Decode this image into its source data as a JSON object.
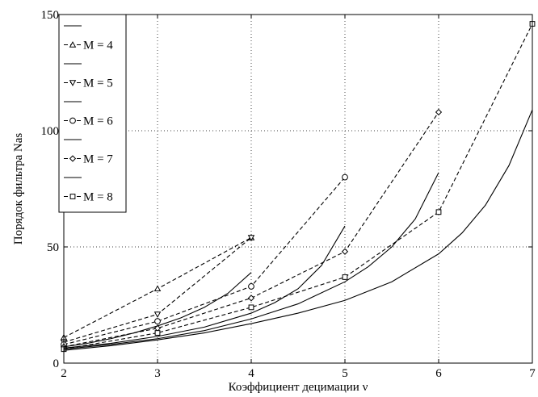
{
  "chart_data": {
    "type": "line",
    "title": "",
    "xlabel": "Коэффициент децимации ν",
    "ylabel": "Порядок фильтра  Nas",
    "xlim": [
      2,
      7
    ],
    "ylim": [
      0,
      150
    ],
    "xticks": [
      2,
      3,
      4,
      5,
      6,
      7
    ],
    "yticks": [
      0,
      50,
      100,
      150
    ],
    "grid": true,
    "legend_position": "top-left",
    "series": [
      {
        "name": "M = 4",
        "style": "dashed",
        "marker": "triangle-up",
        "x": [
          2,
          3,
          4
        ],
        "y": [
          11,
          32,
          54
        ]
      },
      {
        "name": "M = 5",
        "style": "dashed",
        "marker": "triangle-down",
        "x": [
          2,
          3,
          4
        ],
        "y": [
          9,
          21,
          54
        ]
      },
      {
        "name": "M = 6",
        "style": "dashed",
        "marker": "circle",
        "x": [
          2,
          3,
          4,
          5
        ],
        "y": [
          8,
          18,
          33,
          80
        ]
      },
      {
        "name": "M = 7",
        "style": "dashed",
        "marker": "diamond",
        "x": [
          2,
          3,
          4,
          5,
          6
        ],
        "y": [
          7,
          15,
          28,
          48,
          108
        ]
      },
      {
        "name": "M = 8",
        "style": "dashed",
        "marker": "square",
        "x": [
          2,
          3,
          4,
          5,
          6,
          7
        ],
        "y": [
          6,
          13,
          24,
          37,
          65,
          146
        ]
      },
      {
        "name": "",
        "style": "solid",
        "marker": "none",
        "x": [
          2,
          2.25,
          2.5,
          2.75,
          3,
          3.25,
          3.5,
          3.75,
          4
        ],
        "y": [
          7,
          8.5,
          10.5,
          13,
          16,
          19.5,
          24,
          30,
          39
        ]
      },
      {
        "name": "",
        "style": "solid",
        "marker": "none",
        "x": [
          2,
          2.5,
          3,
          3.5,
          4,
          4.25,
          4.5,
          4.75,
          5
        ],
        "y": [
          6.5,
          8.5,
          11.5,
          15.5,
          21.5,
          26,
          32,
          42,
          59
        ]
      },
      {
        "name": "",
        "style": "solid",
        "marker": "none",
        "x": [
          2,
          2.5,
          3,
          3.5,
          4,
          4.5,
          5,
          5.25,
          5.5,
          5.75,
          6
        ],
        "y": [
          6,
          8,
          10.5,
          14,
          19,
          25.5,
          35,
          41.5,
          50,
          62,
          82
        ]
      },
      {
        "name": "",
        "style": "solid",
        "marker": "none",
        "x": [
          2,
          2.5,
          3,
          3.5,
          4,
          4.5,
          5,
          5.5,
          6,
          6.25,
          6.5,
          6.75,
          7
        ],
        "y": [
          5.5,
          7.5,
          10,
          13,
          17,
          21.5,
          27,
          35,
          47,
          56,
          68,
          85,
          109
        ]
      }
    ]
  }
}
